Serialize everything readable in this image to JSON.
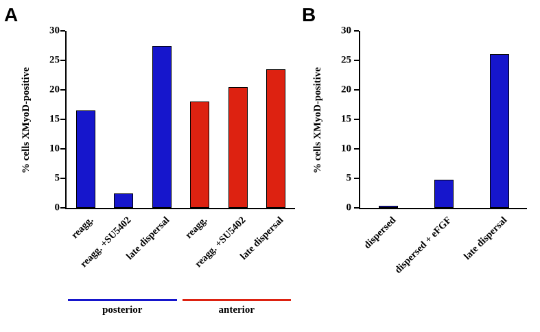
{
  "panels": [
    {
      "label": "A"
    },
    {
      "label": "B"
    }
  ],
  "chart_data": [
    {
      "type": "bar",
      "panel": "A",
      "title": "",
      "xlabel": "",
      "ylabel": "% cells XMyoD-positive",
      "ylim": [
        0,
        30
      ],
      "yticks": [
        0,
        5,
        10,
        15,
        20,
        25,
        30
      ],
      "grid": false,
      "legend": "none",
      "categories": [
        "reagg.",
        "reagg. +SU5402",
        "late dispersal",
        "reagg.",
        "reagg. +SU5402",
        "late dispersal"
      ],
      "values": [
        16.5,
        2.5,
        27.5,
        18,
        20.5,
        23.5
      ],
      "colors": [
        "#1616cc",
        "#1616cc",
        "#1616cc",
        "#dd2211",
        "#dd2211",
        "#dd2211"
      ],
      "groups": [
        {
          "label": "posterior",
          "color": "#1616cc",
          "span": [
            0,
            2
          ]
        },
        {
          "label": "anterior",
          "color": "#dd2211",
          "span": [
            3,
            5
          ]
        }
      ]
    },
    {
      "type": "bar",
      "panel": "B",
      "title": "",
      "xlabel": "",
      "ylabel": "% cells XMyoD-positive",
      "ylim": [
        0,
        30
      ],
      "yticks": [
        0,
        5,
        10,
        15,
        20,
        25,
        30
      ],
      "grid": false,
      "legend": "none",
      "categories": [
        "dispersed",
        "dispersed + eFGF",
        "late dispersal"
      ],
      "values": [
        0.3,
        4.8,
        26
      ],
      "colors": [
        "#1616cc",
        "#1616cc",
        "#1616cc"
      ]
    }
  ]
}
